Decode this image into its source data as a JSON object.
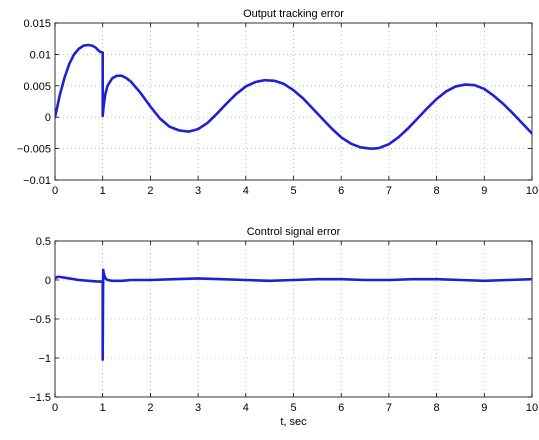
{
  "chart_data": [
    {
      "type": "line",
      "title": "Output tracking error",
      "xlabel": "",
      "ylabel": "",
      "xlim": [
        0,
        10
      ],
      "ylim": [
        -0.01,
        0.015
      ],
      "xticks": [
        0,
        1,
        2,
        3,
        4,
        5,
        6,
        7,
        8,
        9,
        10
      ],
      "xtick_labels": [
        "0",
        "1",
        "2",
        "3",
        "4",
        "5",
        "6",
        "7",
        "8",
        "9",
        "10"
      ],
      "yticks": [
        -0.01,
        -0.005,
        0,
        0.005,
        0.01,
        0.015
      ],
      "ytick_labels": [
        "−0.01",
        "−0.005",
        "0",
        "0.005",
        "0.01",
        "0.015"
      ],
      "grid": true,
      "color": "#1f1fd6",
      "series": [
        {
          "x": [
            0,
            0.1,
            0.2,
            0.3,
            0.4,
            0.5,
            0.6,
            0.7,
            0.78,
            0.85,
            0.9,
            0.95,
            1.0,
            1.0,
            1.02,
            1.05,
            1.1,
            1.2,
            1.3,
            1.4,
            1.5,
            1.6,
            1.8,
            2.0,
            2.2,
            2.4,
            2.6,
            2.8,
            3.0,
            3.2,
            3.4,
            3.6,
            3.8,
            4.0,
            4.2,
            4.4,
            4.6,
            4.8,
            5.0,
            5.2,
            5.4,
            5.6,
            5.8,
            6.0,
            6.2,
            6.4,
            6.6,
            6.7,
            6.8,
            7.0,
            7.2,
            7.4,
            7.6,
            7.8,
            8.0,
            8.2,
            8.4,
            8.6,
            8.8,
            9.0,
            9.2,
            9.4,
            9.6,
            9.8,
            10.0
          ],
          "y": [
            0,
            0.0035,
            0.0063,
            0.0085,
            0.01,
            0.0109,
            0.0114,
            0.0115,
            0.0114,
            0.0111,
            0.0107,
            0.0104,
            0.0103,
            0.0002,
            0.0018,
            0.0035,
            0.005,
            0.0062,
            0.0066,
            0.0066,
            0.0062,
            0.0056,
            0.0038,
            0.0017,
            -0.0002,
            -0.0015,
            -0.0021,
            -0.0023,
            -0.0019,
            -0.0009,
            0.0006,
            0.0022,
            0.0037,
            0.0049,
            0.0056,
            0.0059,
            0.0058,
            0.0053,
            0.0043,
            0.003,
            0.0014,
            -0.0002,
            -0.0018,
            -0.0032,
            -0.0042,
            -0.0048,
            -0.005,
            -0.005,
            -0.0049,
            -0.0043,
            -0.0032,
            -0.0018,
            -0.0002,
            0.0014,
            0.0029,
            0.0041,
            0.0049,
            0.0052,
            0.0051,
            0.0045,
            0.0034,
            0.0021,
            0.0006,
            -0.001,
            -0.0026
          ]
        }
      ]
    },
    {
      "type": "line",
      "title": "Control signal error",
      "xlabel": "t, sec",
      "ylabel": "",
      "xlim": [
        0,
        10
      ],
      "ylim": [
        -1.5,
        0.5
      ],
      "xticks": [
        0,
        1,
        2,
        3,
        4,
        5,
        6,
        7,
        8,
        9,
        10
      ],
      "xtick_labels": [
        "0",
        "1",
        "2",
        "3",
        "4",
        "5",
        "6",
        "7",
        "8",
        "9",
        "10"
      ],
      "yticks": [
        -1.5,
        -1,
        -0.5,
        0,
        0.5
      ],
      "ytick_labels": [
        "−1.5",
        "−1",
        "−0.5",
        "0",
        "0.5"
      ],
      "grid": true,
      "color": "#1f1fd6",
      "series": [
        {
          "x": [
            0,
            0.05,
            0.1,
            0.2,
            0.3,
            0.5,
            0.7,
            0.9,
            0.99,
            1.0,
            1.0,
            1.005,
            1.01,
            1.02,
            1.04,
            1.06,
            1.1,
            1.2,
            1.4,
            1.6,
            2.0,
            2.5,
            3.0,
            3.5,
            4.0,
            4.5,
            5.0,
            5.5,
            6.0,
            6.5,
            7.0,
            7.5,
            8.0,
            8.5,
            9.0,
            9.5,
            10.0
          ],
          "y": [
            0.02,
            0.04,
            0.04,
            0.03,
            0.02,
            0.0,
            -0.01,
            -0.02,
            -0.02,
            -0.02,
            -1.02,
            -0.4,
            0.13,
            0.09,
            0.05,
            0.02,
            0.0,
            -0.01,
            -0.01,
            0.0,
            0.0,
            0.01,
            0.02,
            0.01,
            0.0,
            -0.01,
            0.0,
            0.01,
            0.01,
            0.0,
            0.0,
            0.01,
            0.01,
            0.0,
            -0.01,
            0.0,
            0.01
          ]
        }
      ]
    }
  ]
}
